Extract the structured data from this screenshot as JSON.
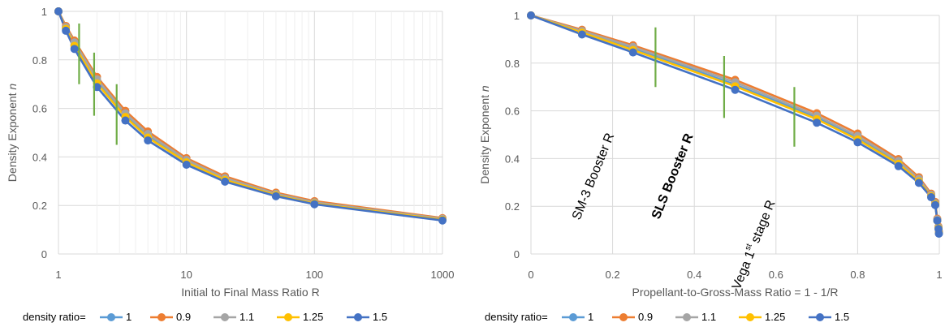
{
  "chart_data": [
    {
      "type": "line",
      "xlabel": "Initial to Final Mass Ratio R",
      "ylabel": "Density Exponent n",
      "xscale": "log",
      "xlim": [
        1,
        1000
      ],
      "ylim": [
        0,
        1
      ],
      "xticks": [
        "1",
        "10",
        "100",
        "1000"
      ],
      "yticks": [
        "0",
        "0.2",
        "0.4",
        "0.6",
        "0.8",
        "1"
      ],
      "grid": true,
      "legend_position": "bottom",
      "legend_title": "density ratio=",
      "series": [
        {
          "name": "1",
          "color": "#5B9BD5",
          "x": [
            1,
            1.143,
            1.333,
            2,
            3.333,
            5,
            10,
            20,
            50,
            100,
            1000
          ],
          "y": [
            1,
            0.93,
            0.862,
            0.71,
            0.572,
            0.486,
            0.382,
            0.308,
            0.244,
            0.21,
            0.142
          ]
        },
        {
          "name": "0.9",
          "color": "#ED7D31",
          "x": [
            1,
            1.143,
            1.333,
            2,
            3.333,
            5,
            10,
            20,
            50,
            100,
            1000
          ],
          "y": [
            1,
            0.94,
            0.88,
            0.73,
            0.59,
            0.505,
            0.395,
            0.32,
            0.253,
            0.218,
            0.148
          ]
        },
        {
          "name": "1.1",
          "color": "#A5A5A5",
          "x": [
            1,
            1.143,
            1.333,
            2,
            3.333,
            5,
            10,
            20,
            50,
            100,
            1000
          ],
          "y": [
            1,
            0.935,
            0.872,
            0.72,
            0.58,
            0.495,
            0.388,
            0.313,
            0.248,
            0.213,
            0.145
          ]
        },
        {
          "name": "1.25",
          "color": "#FFC000",
          "x": [
            1,
            1.143,
            1.333,
            2,
            3.333,
            5,
            10,
            20,
            50,
            100,
            1000
          ],
          "y": [
            1,
            0.928,
            0.858,
            0.703,
            0.565,
            0.48,
            0.378,
            0.305,
            0.242,
            0.208,
            0.141
          ]
        },
        {
          "name": "1.5",
          "color": "#4472C4",
          "x": [
            1,
            1.143,
            1.333,
            2,
            3.333,
            5,
            10,
            20,
            50,
            100,
            1000
          ],
          "y": [
            1,
            0.92,
            0.845,
            0.688,
            0.55,
            0.468,
            0.368,
            0.298,
            0.238,
            0.205,
            0.138
          ]
        }
      ],
      "markers": [
        {
          "x": 1.45,
          "y0": 0.7,
          "y1": 0.95,
          "color": "#70AD47"
        },
        {
          "x": 1.9,
          "y0": 0.57,
          "y1": 0.83,
          "color": "#70AD47"
        },
        {
          "x": 2.85,
          "y0": 0.45,
          "y1": 0.7,
          "color": "#70AD47"
        }
      ]
    },
    {
      "type": "line",
      "xlabel": "Propellant-to-Gross-Mass Ratio = 1 - 1/R",
      "ylabel": "Density Exponent n",
      "xlim": [
        0,
        1
      ],
      "ylim": [
        0,
        1
      ],
      "xticks": [
        "0",
        "0.2",
        "0.4",
        "0.6",
        "0.8",
        "1"
      ],
      "yticks": [
        "0",
        "0.2",
        "0.4",
        "0.6",
        "0.8",
        "1"
      ],
      "grid": true,
      "legend_position": "bottom",
      "legend_title": "density ratio=",
      "series": [
        {
          "name": "1",
          "color": "#5B9BD5",
          "x": [
            0,
            0.125,
            0.25,
            0.5,
            0.7,
            0.8,
            0.9,
            0.95,
            0.98,
            0.99,
            0.995,
            0.998,
            0.999
          ],
          "y": [
            1,
            0.93,
            0.862,
            0.71,
            0.572,
            0.486,
            0.382,
            0.308,
            0.244,
            0.21,
            0.14,
            0.11,
            0.09
          ]
        },
        {
          "name": "0.9",
          "color": "#ED7D31",
          "x": [
            0,
            0.125,
            0.25,
            0.5,
            0.7,
            0.8,
            0.9,
            0.95,
            0.98,
            0.99,
            0.995,
            0.998,
            0.999
          ],
          "y": [
            1,
            0.94,
            0.875,
            0.73,
            0.59,
            0.505,
            0.398,
            0.322,
            0.253,
            0.218,
            0.148,
            0.115,
            0.095
          ]
        },
        {
          "name": "1.1",
          "color": "#A5A5A5",
          "x": [
            0,
            0.125,
            0.25,
            0.5,
            0.7,
            0.8,
            0.9,
            0.95,
            0.98,
            0.99,
            0.995,
            0.998,
            0.999
          ],
          "y": [
            1,
            0.935,
            0.868,
            0.72,
            0.58,
            0.495,
            0.39,
            0.315,
            0.248,
            0.213,
            0.145,
            0.112,
            0.092
          ]
        },
        {
          "name": "1.25",
          "color": "#FFC000",
          "x": [
            0,
            0.125,
            0.25,
            0.5,
            0.7,
            0.8,
            0.9,
            0.95,
            0.98,
            0.99,
            0.995,
            0.998,
            0.999
          ],
          "y": [
            1,
            0.928,
            0.855,
            0.703,
            0.565,
            0.48,
            0.378,
            0.305,
            0.242,
            0.208,
            0.14,
            0.108,
            0.088
          ]
        },
        {
          "name": "1.5",
          "color": "#4472C4",
          "x": [
            0,
            0.125,
            0.25,
            0.5,
            0.7,
            0.8,
            0.9,
            0.95,
            0.98,
            0.99,
            0.995,
            0.998,
            0.999
          ],
          "y": [
            1,
            0.92,
            0.845,
            0.688,
            0.55,
            0.468,
            0.368,
            0.298,
            0.238,
            0.205,
            0.14,
            0.105,
            0.085
          ]
        }
      ],
      "markers": [
        {
          "x": 0.305,
          "y0": 0.7,
          "y1": 0.95,
          "color": "#70AD47"
        },
        {
          "x": 0.473,
          "y0": 0.57,
          "y1": 0.83,
          "color": "#70AD47"
        },
        {
          "x": 0.645,
          "y0": 0.45,
          "y1": 0.7,
          "color": "#70AD47"
        }
      ],
      "annotations": [
        "SM-3 Booster R",
        "SLS Booster R",
        "Vega 1st stage R"
      ]
    }
  ]
}
